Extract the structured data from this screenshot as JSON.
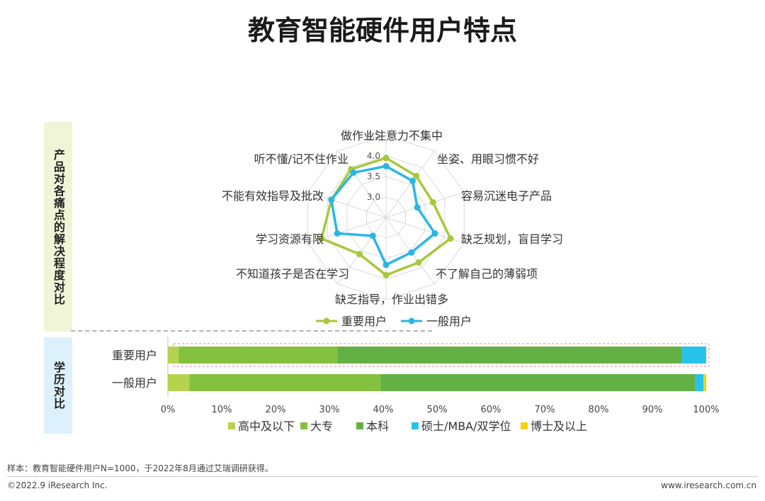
{
  "page": {
    "title": "教育智能硬件用户特点",
    "side_label_top": "产品对各痛点的解决程度对比",
    "side_label_bottom": "学历对比",
    "footer": {
      "sample_note": "样本：教育智能硬件用户N=1000，于2022年8月通过艾瑞调研获得。",
      "copyright": "©2022.9 iResearch Inc.",
      "website": "www.iresearch.com.cn"
    }
  },
  "chart_data": [
    {
      "type": "radar",
      "axes": [
        "做作业注意力不集中",
        "坐姿、用眼习惯不好",
        "容易沉迷电子产品",
        "缺乏规划，盲目学习",
        "不了解自己的薄弱项",
        "缺乏指导，作业出错多",
        "不知道孩子是否在学习",
        "学习资源有限",
        "不能有效指导及批改",
        "听不懂/记不住作业"
      ],
      "radial_ticks": [
        "3.0",
        "3.5",
        "4.0",
        "4.5"
      ],
      "range": [
        2.5,
        4.5
      ],
      "series": [
        {
          "name": "重要用户",
          "color": "#a7c83a",
          "values": [
            3.95,
            3.75,
            3.7,
            4.15,
            3.85,
            3.9,
            3.6,
            4.15,
            3.9,
            3.95
          ]
        },
        {
          "name": "一般用户",
          "color": "#29b6e9",
          "values": [
            3.75,
            3.6,
            3.3,
            3.75,
            3.55,
            3.65,
            3.05,
            3.75,
            3.9,
            3.85
          ]
        }
      ],
      "legend_position": "bottom"
    },
    {
      "type": "bar",
      "orientation": "horizontal",
      "stacked": true,
      "categories": [
        "重要用户",
        "一般用户"
      ],
      "x_ticks": [
        "0%",
        "10%",
        "20%",
        "30%",
        "40%",
        "50%",
        "60%",
        "70%",
        "80%",
        "90%",
        "100%"
      ],
      "xlim": [
        0,
        100
      ],
      "series": [
        {
          "name": "高中及以下",
          "color": "#b6d34e",
          "values": [
            2.0,
            4.0
          ]
        },
        {
          "name": "大专",
          "color": "#84c13f",
          "values": [
            29.5,
            35.5
          ]
        },
        {
          "name": "本科",
          "color": "#63b044",
          "values": [
            64.0,
            58.5
          ]
        },
        {
          "name": "硕士/MBA/双学位",
          "color": "#29c2ec",
          "values": [
            4.5,
            1.5
          ]
        },
        {
          "name": "博士及以上",
          "color": "#f5d20b",
          "values": [
            0,
            0.5
          ]
        }
      ],
      "legend_position": "bottom"
    }
  ]
}
